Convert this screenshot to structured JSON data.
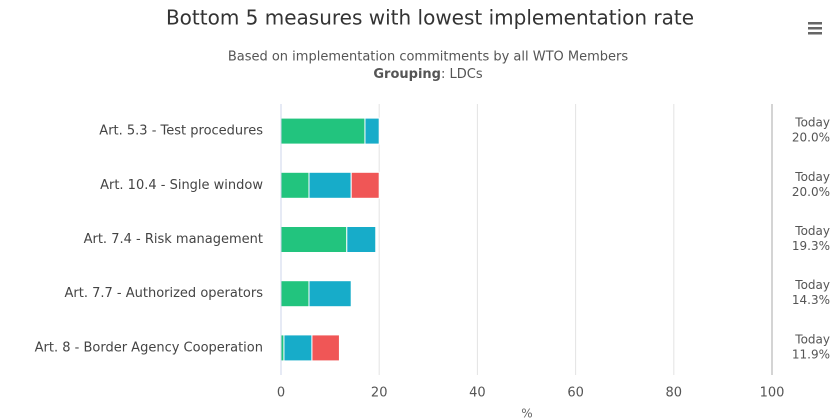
{
  "chart_data": {
    "type": "stacked-bar-horizontal",
    "title": "Bottom 5 measures with lowest implementation rate",
    "subtitle": "Based on implementation commitments by all WTO Members",
    "subtitle_bold": "Grouping",
    "subtitle_rest": ": LDCs",
    "xlabel": "%",
    "categories": [
      "Art. 5.3 - Test procedures",
      "Art. 10.4 - Single window",
      "Art. 7.4 - Risk management",
      "Art. 7.7 - Authorized operators",
      "Art. 8 - Border Agency Cooperation"
    ],
    "series": [
      {
        "color": "#22c47e",
        "values": [
          17.1,
          5.7,
          13.4,
          5.7,
          0.6
        ]
      },
      {
        "color": "#17acc9",
        "values": [
          2.9,
          8.6,
          5.9,
          8.6,
          5.7
        ]
      },
      {
        "color": "#f05656",
        "values": [
          0,
          5.7,
          0,
          0,
          5.6
        ]
      }
    ],
    "total_headers": [
      "Today",
      "Today",
      "Today",
      "Today",
      "Today"
    ],
    "total_labels": [
      "20.0%",
      "20.0%",
      "19.3%",
      "14.3%",
      "11.9%"
    ],
    "xlim": [
      0,
      100
    ],
    "xticks": [
      0,
      20,
      40,
      60,
      80,
      100
    ],
    "grid": true
  }
}
